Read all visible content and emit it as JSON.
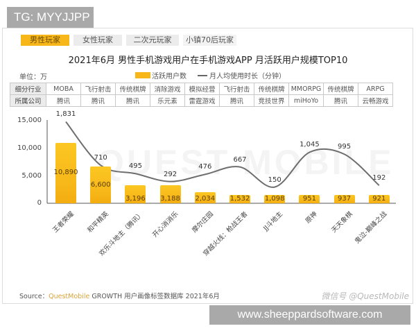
{
  "tg_badge": "TG: MYYJJPP",
  "tabs": [
    {
      "label": "男性玩家",
      "active": true
    },
    {
      "label": "女性玩家",
      "active": false
    },
    {
      "label": "二次元玩家",
      "active": false
    },
    {
      "label": "小镇70后玩家",
      "active": false
    }
  ],
  "title": "2021年6月 男性手机游戏用户在手机游戏APP 月活跃用户规模TOP10",
  "unit": "单位：万",
  "legend": {
    "bar": "活跃用户数",
    "line": "月人均使用时长（分钟）"
  },
  "table": {
    "row1_head": "细分行业",
    "row1": [
      "MOBA",
      "飞行射击",
      "传统棋牌",
      "消除游戏",
      "模拟经营",
      "飞行射击",
      "传统棋牌",
      "MMORPG",
      "传统棋牌",
      "ARPG"
    ],
    "row2_head": "所属公司",
    "row2": [
      "腾讯",
      "腾讯",
      "腾讯",
      "乐元素",
      "雷霆游戏",
      "腾讯",
      "竞技世界",
      "miHoYo",
      "腾讯",
      "云畅游戏"
    ]
  },
  "watermark": "QUEST MOBILE",
  "source": {
    "prefix": "Source：",
    "brand": "QuestMobile",
    "rest": "GROWTH 用户画像标签数据库 2021年6月"
  },
  "credit": "微信号 @QuestMobile",
  "site_badge": "www.sheeppardsoftware.com",
  "colors": {
    "bar": "#f7b719",
    "line": "#6e6e6e",
    "tab_active": "#f7b719"
  },
  "chart_data": {
    "type": "bar",
    "title": "2021年6月 男性手机游戏用户在手机游戏APP 月活跃用户规模TOP10",
    "xlabel": "",
    "ylabel": "单位：万",
    "ylim": [
      0,
      15000
    ],
    "yticks": [
      "15,000",
      "10,000",
      "5,000",
      "0"
    ],
    "categories": [
      "王者荣耀",
      "和平精英",
      "欢乐斗地主（腾讯）",
      "开心消消乐",
      "摩尔庄园",
      "穿越火线：枪战王者",
      "JJ斗地主",
      "原神",
      "天天象棋",
      "鬼泣-巅峰之战"
    ],
    "series": [
      {
        "name": "活跃用户数",
        "type": "bar",
        "values": [
          10890,
          6600,
          3196,
          3188,
          2034,
          1532,
          1098,
          951,
          937,
          921
        ],
        "labels": [
          "10,890",
          "6,600",
          "3,196",
          "3,188",
          "2,034",
          "1,532",
          "1,098",
          "951",
          "937",
          "921"
        ]
      },
      {
        "name": "月人均使用时长（分钟）",
        "type": "line",
        "values": [
          1831,
          710,
          495,
          292,
          476,
          667,
          150,
          1045,
          995,
          192
        ],
        "labels": [
          "1,831",
          "710",
          "495",
          "292",
          "476",
          "667",
          "150",
          "1,045",
          "995",
          "192"
        ]
      }
    ],
    "legend_position": "top",
    "grid": false
  }
}
